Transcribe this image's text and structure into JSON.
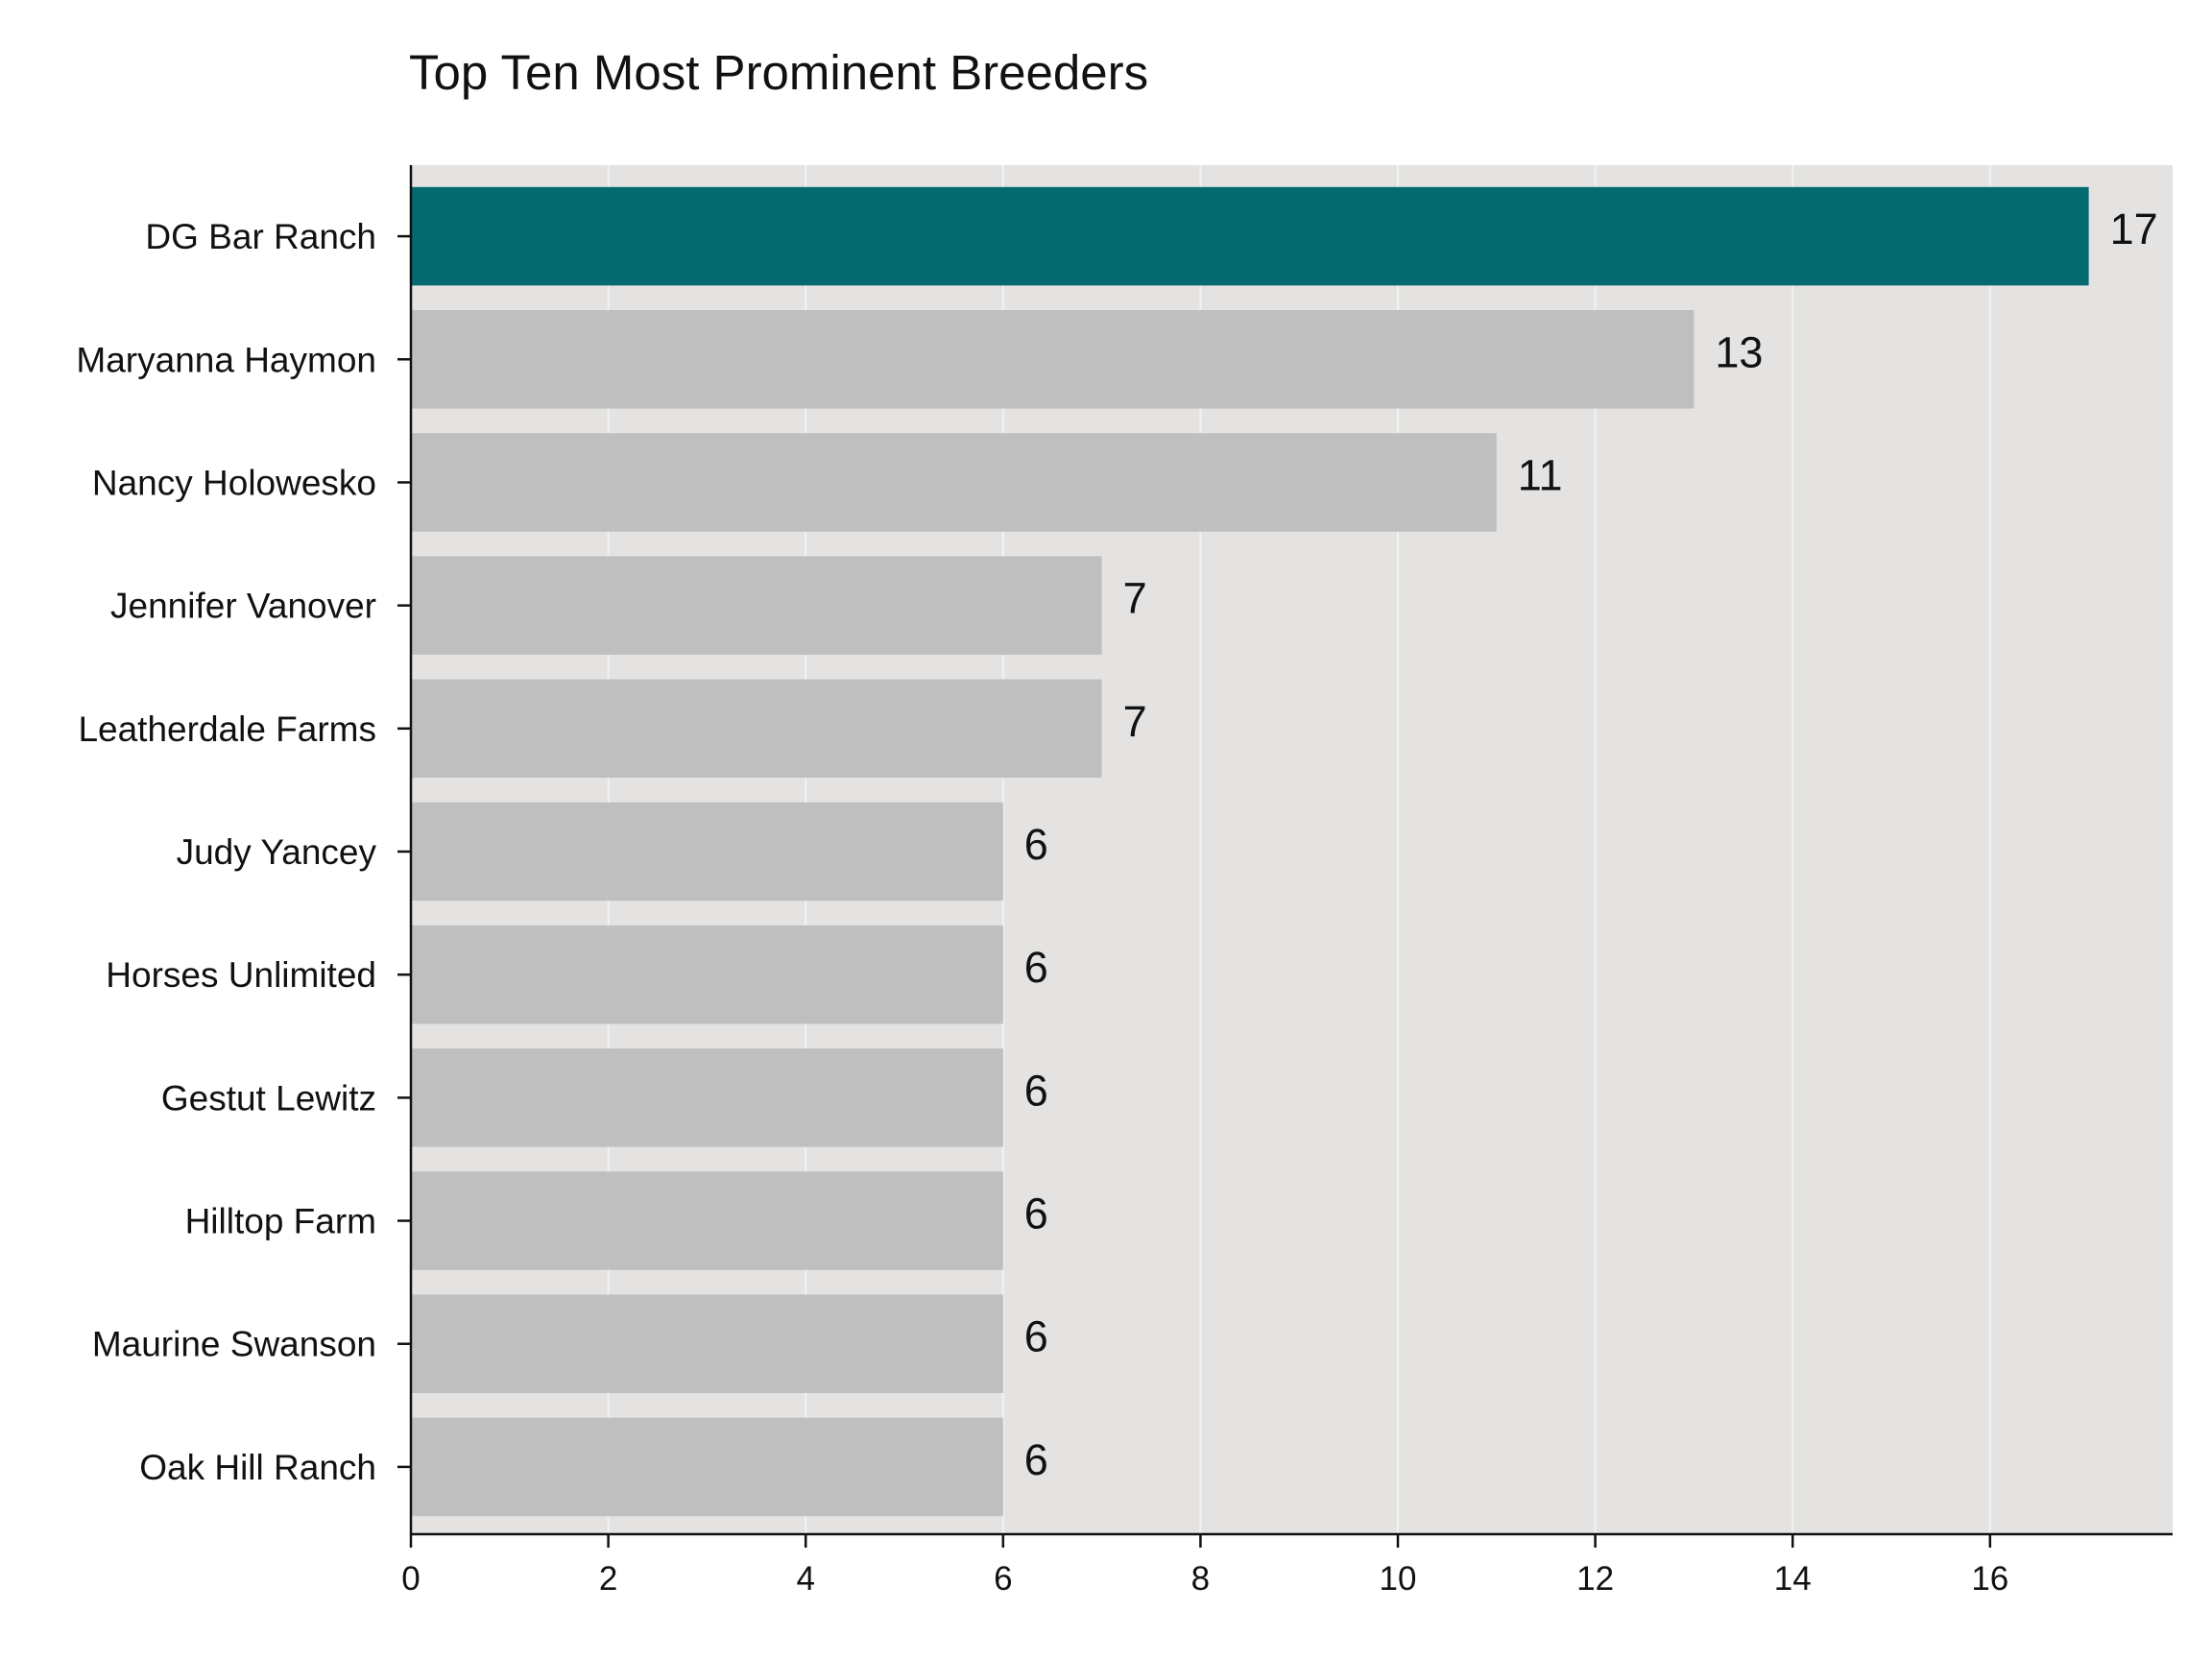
{
  "chart_data": {
    "type": "bar",
    "orientation": "horizontal",
    "title": "Top Ten Most Prominent Breeders",
    "xlabel": "",
    "ylabel": "",
    "categories": [
      "DG Bar Ranch",
      "Maryanna Haymon",
      "Nancy Holowesko",
      "Jennifer Vanover",
      "Leatherdale Farms",
      "Judy Yancey",
      "Horses Unlimited",
      "Gestut Lewitz",
      "Hilltop Farm",
      "Maurine Swanson",
      "Oak Hill Ranch"
    ],
    "values": [
      17,
      13,
      11,
      7,
      7,
      6,
      6,
      6,
      6,
      6,
      6
    ],
    "data_labels": [
      "17",
      "13",
      "11",
      "7",
      "7",
      "6",
      "6",
      "6",
      "6",
      "6",
      "6"
    ],
    "xlim": [
      0,
      17.85
    ],
    "xticks": [
      0,
      2,
      4,
      6,
      8,
      10,
      12,
      14,
      16
    ],
    "xtick_labels": [
      "0",
      "2",
      "4",
      "6",
      "8",
      "10",
      "12",
      "14",
      "16"
    ],
    "grid": "vertical",
    "highlight_index": 0,
    "colors": {
      "highlight": "#046a70",
      "bar": "#bfbfbf",
      "background": "#e4e3e2",
      "grid": "#f2f2f2",
      "axis": "#111111"
    }
  }
}
